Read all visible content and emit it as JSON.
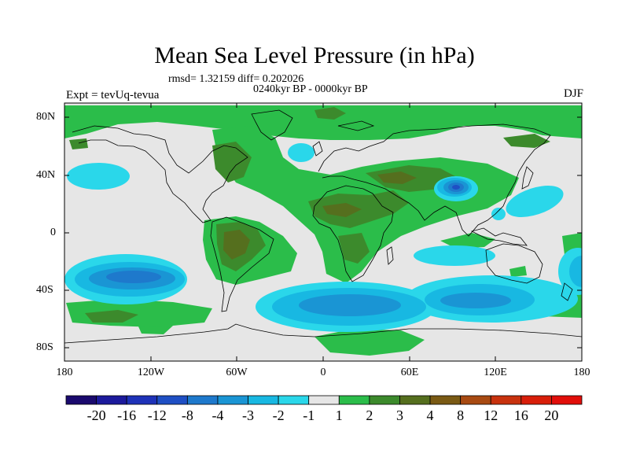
{
  "title": "Mean Sea Level Pressure (in hPa)",
  "stats": "rmsd= 1.32159 diff= 0.202026",
  "period": "0240kyr BP - 0000kyr BP",
  "experiment": "Expt = tevUq-tevua",
  "season": "DJF",
  "map": {
    "lat_ticks": [
      "80N",
      "40N",
      "0",
      "40S",
      "80S"
    ],
    "lon_ticks": [
      "180",
      "120W",
      "60W",
      "0",
      "60E",
      "120E",
      "180"
    ]
  },
  "colorbar": {
    "levels": [
      "-20",
      "-16",
      "-12",
      "-8",
      "-4",
      "-3",
      "-2",
      "-1",
      "1",
      "2",
      "3",
      "4",
      "8",
      "12",
      "16",
      "20"
    ],
    "colors": [
      "#1a0a6e",
      "#1c1a9c",
      "#1e32b8",
      "#1f4fc4",
      "#1e79cc",
      "#1a95d4",
      "#18b8e2",
      "#2ad7ea",
      "#e6e6e6",
      "#2bbd4a",
      "#3c8a2c",
      "#556f1e",
      "#7a5a14",
      "#a84a12",
      "#c8320e",
      "#d81e0a",
      "#e10e0a"
    ]
  }
}
